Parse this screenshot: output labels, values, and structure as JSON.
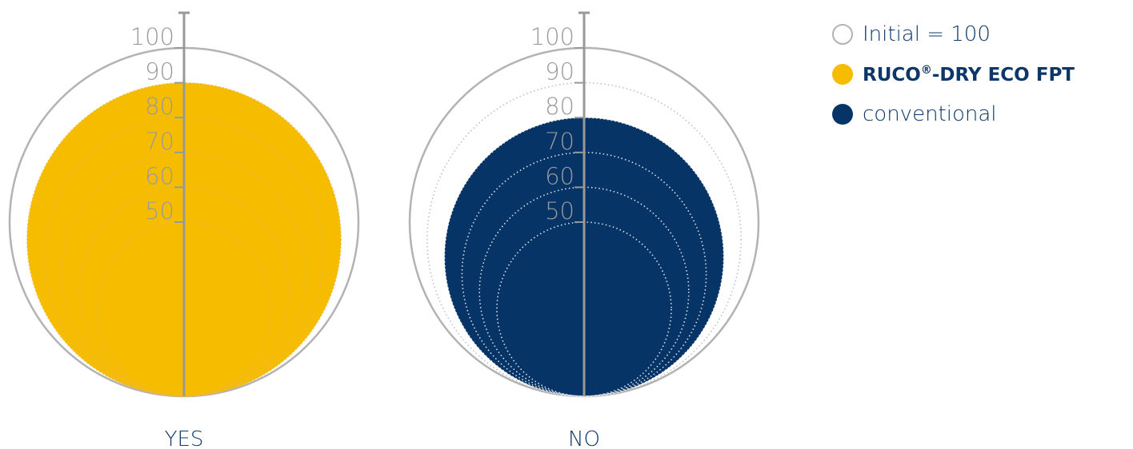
{
  "chart_data": {
    "type": "nested-circle",
    "ticks": [
      50,
      60,
      70,
      80,
      90,
      100
    ],
    "categories": [
      "YES",
      "NO"
    ],
    "series": [
      {
        "name": "Initial = 100",
        "values": [
          100,
          100
        ],
        "color": "#b3b3b3",
        "style": "outline"
      },
      {
        "name": "RUCO®-DRY ECO FPT",
        "values": [
          90,
          null
        ],
        "color": "#f6bd00",
        "style": "fill"
      },
      {
        "name": "conventional",
        "values": [
          null,
          80
        ],
        "color": "#073467",
        "style": "fill"
      }
    ],
    "legend_position": "top-right"
  },
  "legend": {
    "items": [
      {
        "label": "Initial = 100",
        "swatch": "outline",
        "color": "#b3b3b3"
      },
      {
        "label_main": "RUCO",
        "label_sup": "®",
        "label_rest": "-DRY ECO FPT",
        "swatch": "fill",
        "color": "#f6bd00"
      },
      {
        "label": "conventional",
        "swatch": "fill",
        "color": "#073467"
      }
    ]
  },
  "colors": {
    "axis": "#999999",
    "outline": "#b3b3b3",
    "dotted_light": "#d9d9d9",
    "dotted_dark": "#ffffff"
  }
}
